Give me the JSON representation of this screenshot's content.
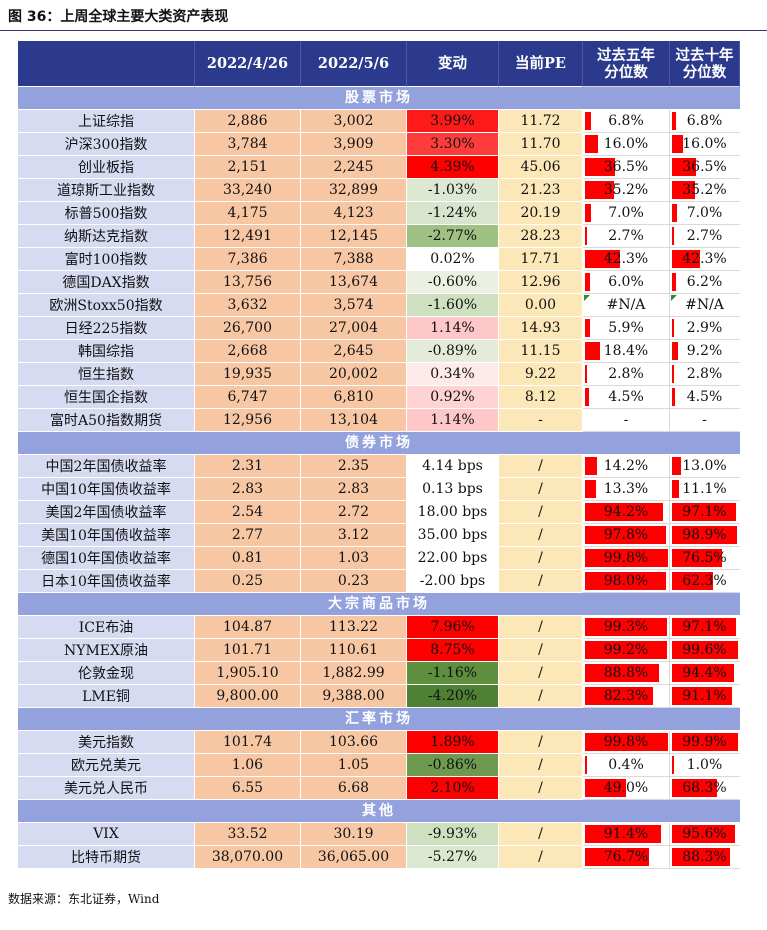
{
  "title": "图 36：上周全球主要大类资产表现",
  "source": "数据来源：东北证券，Wind",
  "colors": {
    "header": "#2b3a8c",
    "section": "#93a1dc",
    "name_col": "#d7dbf2",
    "value_cols": "#f7c7a4",
    "pe_col": "#fbe7b8",
    "bar": "#ff0000"
  },
  "header": [
    "",
    "2022/4/26",
    "2022/5/6",
    "变动",
    "当前PE",
    "过去五年\n分位数",
    "过去十年\n分位数"
  ],
  "sections": [
    {
      "name": "股票市场",
      "rows": [
        {
          "name": "上证综指",
          "v1": "2,886",
          "v2": "3,002",
          "chg": "3.99%",
          "chg_bg": "#ff1a1a",
          "pe": "11.72",
          "p5": "6.8%",
          "p5v": 6.8,
          "p10": "6.8%",
          "p10v": 6.8
        },
        {
          "name": "沪深300指数",
          "v1": "3,784",
          "v2": "3,909",
          "chg": "3.30%",
          "chg_bg": "#ff3c3c",
          "pe": "11.70",
          "p5": "16.0%",
          "p5v": 16.0,
          "p10": "16.0%",
          "p10v": 16.0
        },
        {
          "name": "创业板指",
          "v1": "2,151",
          "v2": "2,245",
          "chg": "4.39%",
          "chg_bg": "#ff0000",
          "pe": "45.06",
          "p5": "36.5%",
          "p5v": 36.5,
          "p10": "36.5%",
          "p10v": 36.5
        },
        {
          "name": "道琼斯工业指数",
          "v1": "33,240",
          "v2": "32,899",
          "chg": "-1.03%",
          "chg_bg": "#dde8d3",
          "pe": "21.23",
          "p5": "35.2%",
          "p5v": 35.2,
          "p10": "35.2%",
          "p10v": 35.2
        },
        {
          "name": "标普500指数",
          "v1": "4,175",
          "v2": "4,123",
          "chg": "-1.24%",
          "chg_bg": "#d8e5cc",
          "pe": "20.19",
          "p5": "7.0%",
          "p5v": 7.0,
          "p10": "7.0%",
          "p10v": 7.0
        },
        {
          "name": "纳斯达克指数",
          "v1": "12,491",
          "v2": "12,145",
          "chg": "-2.77%",
          "chg_bg": "#9fc184",
          "pe": "28.23",
          "p5": "2.7%",
          "p5v": 2.7,
          "p10": "2.7%",
          "p10v": 2.7
        },
        {
          "name": "富时100指数",
          "v1": "7,386",
          "v2": "7,388",
          "chg": "0.02%",
          "chg_bg": "#ffffff",
          "pe": "17.71",
          "p5": "42.3%",
          "p5v": 42.3,
          "p10": "42.3%",
          "p10v": 42.3
        },
        {
          "name": "德国DAX指数",
          "v1": "13,756",
          "v2": "13,674",
          "chg": "-0.60%",
          "chg_bg": "#eaf1e3",
          "pe": "12.96",
          "p5": "6.0%",
          "p5v": 6.0,
          "p10": "6.2%",
          "p10v": 6.2
        },
        {
          "name": "欧洲Stoxx50指数",
          "v1": "3,632",
          "v2": "3,574",
          "chg": "-1.60%",
          "chg_bg": "#cfe0c1",
          "pe": "0.00",
          "p5": "#N/A",
          "p5v": 0,
          "p10": "#N/A",
          "p10v": 0,
          "na": true
        },
        {
          "name": "日经225指数",
          "v1": "26,700",
          "v2": "27,004",
          "chg": "1.14%",
          "chg_bg": "#ffc8c8",
          "pe": "14.93",
          "p5": "5.9%",
          "p5v": 5.9,
          "p10": "2.9%",
          "p10v": 2.9
        },
        {
          "name": "韩国综指",
          "v1": "2,668",
          "v2": "2,645",
          "chg": "-0.89%",
          "chg_bg": "#e3ecd9",
          "pe": "11.15",
          "p5": "18.4%",
          "p5v": 18.4,
          "p10": "9.2%",
          "p10v": 9.2
        },
        {
          "name": "恒生指数",
          "v1": "19,935",
          "v2": "20,002",
          "chg": "0.34%",
          "chg_bg": "#ffeaea",
          "pe": "9.22",
          "p5": "2.8%",
          "p5v": 2.8,
          "p10": "2.8%",
          "p10v": 2.8
        },
        {
          "name": "恒生国企指数",
          "v1": "6,747",
          "v2": "6,810",
          "chg": "0.92%",
          "chg_bg": "#ffd3d3",
          "pe": "8.12",
          "p5": "4.5%",
          "p5v": 4.5,
          "p10": "4.5%",
          "p10v": 4.5
        },
        {
          "name": "富时A50指数期货",
          "v1": "12,956",
          "v2": "13,104",
          "chg": "1.14%",
          "chg_bg": "#ffc8c8",
          "pe": "-",
          "p5": "-",
          "p5v": 0,
          "p10": "-",
          "p10v": 0
        }
      ]
    },
    {
      "name": "债券市场",
      "rows": [
        {
          "name": "中国2年国债收益率",
          "v1": "2.31",
          "v2": "2.35",
          "chg": "4.14 bps",
          "chg_bg": "#ffffff",
          "pe": "/",
          "p5": "14.2%",
          "p5v": 14.2,
          "p10": "13.0%",
          "p10v": 13.0
        },
        {
          "name": "中国10年国债收益率",
          "v1": "2.83",
          "v2": "2.83",
          "chg": "0.13 bps",
          "chg_bg": "#ffffff",
          "pe": "/",
          "p5": "13.3%",
          "p5v": 13.3,
          "p10": "11.1%",
          "p10v": 11.1
        },
        {
          "name": "美国2年国债收益率",
          "v1": "2.54",
          "v2": "2.72",
          "chg": "18.00 bps",
          "chg_bg": "#ffffff",
          "pe": "/",
          "p5": "94.2%",
          "p5v": 94.2,
          "p10": "97.1%",
          "p10v": 97.1
        },
        {
          "name": "美国10年国债收益率",
          "v1": "2.77",
          "v2": "3.12",
          "chg": "35.00 bps",
          "chg_bg": "#ffffff",
          "pe": "/",
          "p5": "97.8%",
          "p5v": 97.8,
          "p10": "98.9%",
          "p10v": 98.9
        },
        {
          "name": "德国10年国债收益率",
          "v1": "0.81",
          "v2": "1.03",
          "chg": "22.00 bps",
          "chg_bg": "#ffffff",
          "pe": "/",
          "p5": "99.8%",
          "p5v": 99.8,
          "p10": "76.5%",
          "p10v": 76.5
        },
        {
          "name": "日本10年国债收益率",
          "v1": "0.25",
          "v2": "0.23",
          "chg": "-2.00 bps",
          "chg_bg": "#ffffff",
          "pe": "/",
          "p5": "98.0%",
          "p5v": 98.0,
          "p10": "62.3%",
          "p10v": 62.3
        }
      ]
    },
    {
      "name": "大宗商品市场",
      "rows": [
        {
          "name": "ICE布油",
          "v1": "104.87",
          "v2": "113.22",
          "chg": "7.96%",
          "chg_bg": "#ff0000",
          "pe": "/",
          "p5": "99.3%",
          "p5v": 99.3,
          "p10": "97.1%",
          "p10v": 97.1
        },
        {
          "name": "NYMEX原油",
          "v1": "101.71",
          "v2": "110.61",
          "chg": "8.75%",
          "chg_bg": "#ff0000",
          "pe": "/",
          "p5": "99.2%",
          "p5v": 99.2,
          "p10": "99.6%",
          "p10v": 99.6
        },
        {
          "name": "伦敦金现",
          "v1": "1,905.10",
          "v2": "1,882.99",
          "chg": "-1.16%",
          "chg_bg": "#5e8f3e",
          "pe": "/",
          "p5": "88.8%",
          "p5v": 88.8,
          "p10": "94.4%",
          "p10v": 94.4
        },
        {
          "name": "LME铜",
          "v1": "9,800.00",
          "v2": "9,388.00",
          "chg": "-4.20%",
          "chg_bg": "#4f8135",
          "pe": "/",
          "p5": "82.3%",
          "p5v": 82.3,
          "p10": "91.1%",
          "p10v": 91.1
        }
      ]
    },
    {
      "name": "汇率市场",
      "rows": [
        {
          "name": "美元指数",
          "v1": "101.74",
          "v2": "103.66",
          "chg": "1.89%",
          "chg_bg": "#ff0000",
          "pe": "/",
          "p5": "99.8%",
          "p5v": 99.8,
          "p10": "99.9%",
          "p10v": 99.9
        },
        {
          "name": "欧元兑美元",
          "v1": "1.06",
          "v2": "1.05",
          "chg": "-0.86%",
          "chg_bg": "#6d9a4e",
          "pe": "/",
          "p5": "0.4%",
          "p5v": 0.4,
          "p10": "1.0%",
          "p10v": 1.0
        },
        {
          "name": "美元兑人民币",
          "v1": "6.55",
          "v2": "6.68",
          "chg": "2.10%",
          "chg_bg": "#ff0000",
          "pe": "/",
          "p5": "49.0%",
          "p5v": 49.0,
          "p10": "68.3%",
          "p10v": 68.3
        }
      ]
    },
    {
      "name": "其他",
      "rows": [
        {
          "name": "VIX",
          "v1": "33.52",
          "v2": "30.19",
          "chg": "-9.93%",
          "chg_bg": "#cfe0c1",
          "pe": "/",
          "p5": "91.4%",
          "p5v": 91.4,
          "p10": "95.6%",
          "p10v": 95.6
        },
        {
          "name": "比特币期货",
          "v1": "38,070.00",
          "v2": "36,065.00",
          "chg": "-5.27%",
          "chg_bg": "#dbe7cf",
          "pe": "/",
          "p5": "76.7%",
          "p5v": 76.7,
          "p10": "88.3%",
          "p10v": 88.3
        }
      ]
    }
  ]
}
